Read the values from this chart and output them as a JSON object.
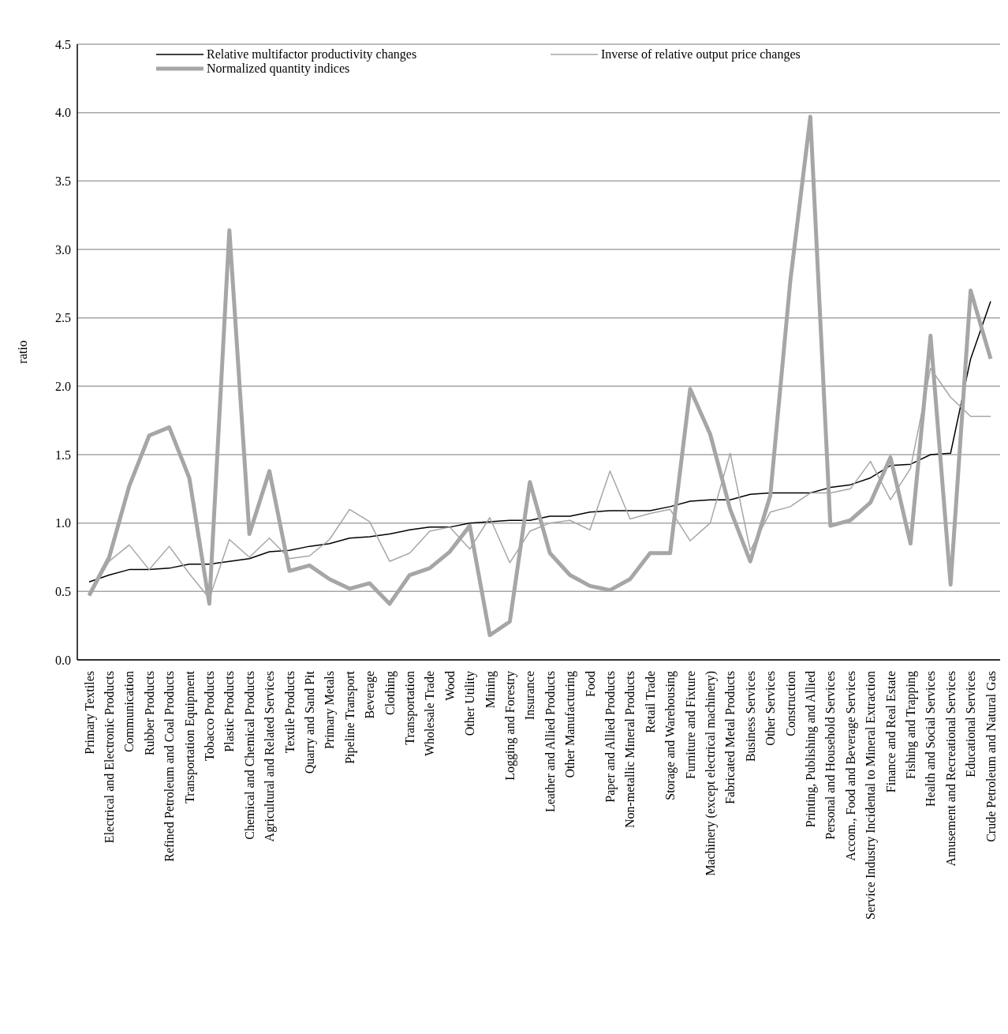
{
  "chart_data": {
    "type": "line",
    "ylabel": "ratio",
    "categories": [
      "Primary Textiles",
      "Electrical and Electronic Products",
      "Communication",
      "Rubber Products",
      "Refined Petroleum and Coal Products",
      "Transportation Equipment",
      "Tobacco Products",
      "Plastic Products",
      "Chemical and Chemical Products",
      "Agricultural and Related Services",
      "Textile Products",
      "Quarry and Sand Pit",
      "Primary Metals",
      "Pipeline Transport",
      "Beverage",
      "Clothing",
      "Transportation",
      "Wholesale Trade",
      "Wood",
      "Other Utility",
      "Mining",
      "Logging and Forestry",
      "Insurance",
      "Leather and Allied Products",
      "Other Manufacturing",
      "Food",
      "Paper and Allied Products",
      "Non-metallic Mineral Products",
      "Retail Trade",
      "Storage and Warehousing",
      "Furniture and Fixture",
      "Machinery  (except electrical machinery)",
      "Fabricated Metal Products",
      "Business Services",
      "Other Services",
      "Construction",
      "Printing, Publishing and Allied",
      "Personal and Household Services",
      "Accom., Food and Beverage Services",
      "Service Industry Incidental to Mineral Extraction",
      "Finance and Real Estate",
      "Fishing and Trapping",
      "Health and Social Services",
      "Amusement and Recreational Services",
      "Educational Services",
      "Crude Petroleum and Natural Gas"
    ],
    "series": [
      {
        "name": "Relative multifactor productivity changes",
        "color": "#000000",
        "values": [
          0.57,
          0.62,
          0.66,
          0.66,
          0.67,
          0.7,
          0.7,
          0.72,
          0.74,
          0.79,
          0.8,
          0.83,
          0.85,
          0.89,
          0.9,
          0.92,
          0.95,
          0.97,
          0.97,
          1.0,
          1.01,
          1.02,
          1.02,
          1.05,
          1.05,
          1.08,
          1.09,
          1.09,
          1.09,
          1.12,
          1.16,
          1.17,
          1.17,
          1.21,
          1.22,
          1.22,
          1.22,
          1.26,
          1.28,
          1.33,
          1.42,
          1.43,
          1.5,
          1.51,
          2.2,
          2.62
        ]
      },
      {
        "name": "Inverse of relative output price changes",
        "color": "#a6a6a6",
        "values": [
          0.47,
          0.72,
          0.84,
          0.66,
          0.83,
          0.63,
          0.45,
          0.88,
          0.75,
          0.89,
          0.74,
          0.76,
          0.88,
          1.1,
          1.01,
          0.72,
          0.78,
          0.94,
          0.97,
          0.81,
          1.04,
          0.71,
          0.94,
          1.0,
          1.02,
          0.95,
          1.38,
          1.03,
          1.07,
          1.1,
          0.87,
          1.0,
          1.51,
          0.8,
          1.08,
          1.12,
          1.22,
          1.22,
          1.25,
          1.45,
          1.17,
          1.4,
          2.13,
          1.92,
          1.78,
          1.78
        ]
      },
      {
        "name": "Normalized quantity  indices",
        "color": "#a6a6a6",
        "values": [
          0.47,
          0.75,
          1.27,
          1.64,
          1.7,
          1.33,
          0.41,
          3.14,
          0.92,
          1.38,
          0.65,
          0.69,
          0.59,
          0.52,
          0.56,
          0.41,
          0.62,
          0.67,
          0.79,
          0.98,
          0.18,
          0.28,
          1.3,
          0.78,
          0.62,
          0.54,
          0.51,
          0.59,
          0.78,
          0.78,
          1.98,
          1.65,
          1.1,
          0.72,
          1.2,
          2.77,
          3.97,
          0.98,
          1.02,
          1.15,
          1.48,
          0.85,
          2.37,
          0.55,
          2.7,
          2.2
        ]
      }
    ],
    "ylim": [
      0,
      4.5
    ],
    "yticks": [
      {
        "value": 0,
        "label": "0.0"
      },
      {
        "value": 0.5,
        "label": "0.5"
      },
      {
        "value": 1,
        "label": "1.0"
      },
      {
        "value": 1.5,
        "label": "1.5"
      },
      {
        "value": 2,
        "label": "2.0"
      },
      {
        "value": 2.5,
        "label": "2.5"
      },
      {
        "value": 3,
        "label": "3.0"
      },
      {
        "value": 3.5,
        "label": "3.5"
      },
      {
        "value": 4,
        "label": "4.0"
      },
      {
        "value": 4.5,
        "label": "4.5"
      }
    ],
    "grid": "y",
    "legend": "top",
    "marker": "none",
    "line_style": "solid"
  }
}
